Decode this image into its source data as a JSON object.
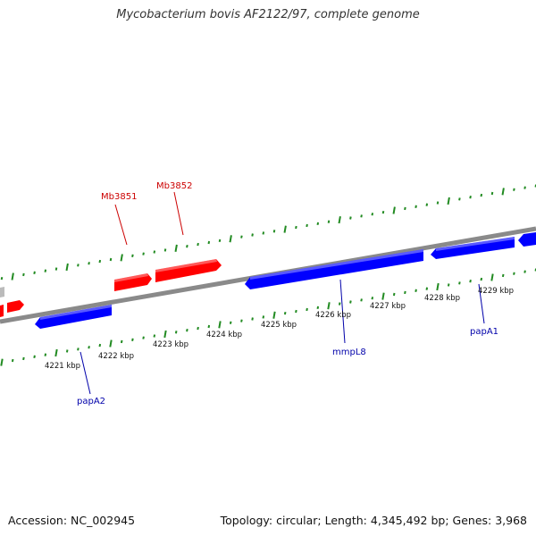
{
  "title": "Mycobacterium bovis AF2122/97, complete genome",
  "footer": {
    "accession": "Accession: NC_002945",
    "info": "Topology: circular; Length: 4,345,492 bp; Genes: 3,968"
  },
  "colors": {
    "forward_gene": "#ff0000",
    "reverse_gene": "#0000ee",
    "backbone": "#888888",
    "tick": "#228b22",
    "forward_label": "#cc0000",
    "reverse_label": "#0000aa"
  },
  "scale_ticks": [
    {
      "label": "4221 kbp"
    },
    {
      "label": "4222 kbp"
    },
    {
      "label": "4223 kbp"
    },
    {
      "label": "4224 kbp"
    },
    {
      "label": "4225 kbp"
    },
    {
      "label": "4226 kbp"
    },
    {
      "label": "4227 kbp"
    },
    {
      "label": "4228 kbp"
    },
    {
      "label": "4229 kbp"
    }
  ],
  "gene_labels": [
    {
      "name": "Mb3851",
      "strand": "forward"
    },
    {
      "name": "Mb3852",
      "strand": "forward"
    },
    {
      "name": "papA2",
      "strand": "reverse"
    },
    {
      "name": "mmpL8",
      "strand": "reverse"
    },
    {
      "name": "papA1",
      "strand": "reverse"
    }
  ]
}
